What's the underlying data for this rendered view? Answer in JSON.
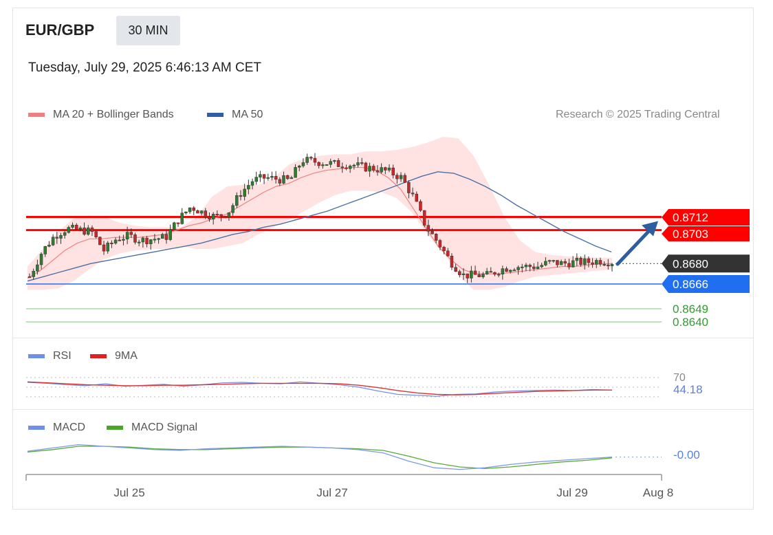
{
  "header": {
    "symbol": "EUR/GBP",
    "timeframe": "30 MIN",
    "datetime": "Tuesday, July 29, 2025 6:46:13 AM CET",
    "credit": "Research © 2025 Trading Central"
  },
  "legend": {
    "ma20": "MA 20 + Bollinger Bands",
    "ma50": "MA 50",
    "rsi": "RSI",
    "rsi_ma": "9MA",
    "macd": "MACD",
    "macd_signal": "MACD Signal"
  },
  "colors": {
    "resistance": "#ff0000",
    "current": "#333333",
    "support1": "#1f6ff0",
    "support": "#2e9d2e",
    "arrow": "#2d5f9e",
    "ma20": "#f08080",
    "ma50": "#4a6fa5",
    "band": "#ffd9d9",
    "rsi": "#6f8fe8",
    "rsi_ma": "#e03030",
    "macd": "#7c9be6",
    "macd_signal": "#55aa33"
  },
  "chart_data": [
    {
      "type": "candlestick",
      "title": "EUR/GBP",
      "x_ticks": [
        "Jul 25",
        "Jul 27",
        "Jul 29",
        "Aug 8"
      ],
      "ylim": [
        0.8632,
        0.872
      ],
      "levels": [
        {
          "value": 0.8712,
          "label": "0.8712",
          "kind": "resistance"
        },
        {
          "value": 0.8703,
          "label": "0.8703",
          "kind": "resistance"
        },
        {
          "value": 0.868,
          "label": "0.8680",
          "kind": "current"
        },
        {
          "value": 0.8666,
          "label": "0.8666",
          "kind": "support1"
        },
        {
          "value": 0.8649,
          "label": "0.8649",
          "kind": "support"
        },
        {
          "value": 0.864,
          "label": "0.8640",
          "kind": "support"
        }
      ],
      "close_path": [
        0.8671,
        0.8688,
        0.8699,
        0.8704,
        0.8703,
        0.8702,
        0.8689,
        0.8697,
        0.8699,
        0.8696,
        0.8697,
        0.8698,
        0.871,
        0.8719,
        0.8715,
        0.8712,
        0.8715,
        0.8728,
        0.8737,
        0.8739,
        0.8738,
        0.8737,
        0.8751,
        0.875,
        0.8749,
        0.8748,
        0.8748,
        0.8746,
        0.8745,
        0.8743,
        0.8739,
        0.8725,
        0.8705,
        0.8694,
        0.8681,
        0.8672,
        0.8672,
        0.8672,
        0.8676,
        0.8678,
        0.8678,
        0.8678,
        0.8681,
        0.868,
        0.8681,
        0.8681,
        0.8682,
        0.8681
      ],
      "ma20": [
        0.867,
        0.8675,
        0.8682,
        0.8689,
        0.8694,
        0.8697,
        0.8697,
        0.8698,
        0.8698,
        0.8698,
        0.8699,
        0.87,
        0.8703,
        0.8706,
        0.8708,
        0.8711,
        0.8714,
        0.8719,
        0.8724,
        0.8729,
        0.8733,
        0.8735,
        0.8739,
        0.8742,
        0.8744,
        0.8745,
        0.8746,
        0.8746,
        0.8744,
        0.8739,
        0.8731,
        0.8718,
        0.8705,
        0.8692,
        0.8683,
        0.8676,
        0.8673,
        0.8673,
        0.8673,
        0.8674,
        0.8675,
        0.8676,
        0.8677,
        0.8678,
        0.8678,
        0.8679,
        0.868,
        0.868
      ],
      "ma50": [
        0.8668,
        0.8671,
        0.8674,
        0.8677,
        0.868,
        0.8682,
        0.8684,
        0.8686,
        0.8688,
        0.869,
        0.8692,
        0.8694,
        0.8697,
        0.87,
        0.8702,
        0.8705,
        0.8707,
        0.871,
        0.8713,
        0.8716,
        0.872,
        0.8724,
        0.8728,
        0.8732,
        0.8736,
        0.874,
        0.8743,
        0.8742,
        0.8738,
        0.8733,
        0.8727,
        0.872,
        0.8714,
        0.8708,
        0.8702,
        0.8697,
        0.8692,
        0.8688
      ],
      "band_upper": [
        0.8678,
        0.869,
        0.8702,
        0.8711,
        0.8713,
        0.8712,
        0.8708,
        0.8706,
        0.8705,
        0.8705,
        0.8705,
        0.8712,
        0.8726,
        0.8733,
        0.8734,
        0.8734,
        0.8739,
        0.8748,
        0.8752,
        0.8754,
        0.8755,
        0.8755,
        0.8757,
        0.8757,
        0.8758,
        0.876,
        0.8763,
        0.8767,
        0.8766,
        0.8754,
        0.8734,
        0.8712,
        0.8696,
        0.8688,
        0.8686,
        0.8685,
        0.8685,
        0.8684,
        0.8684
      ],
      "band_lower": [
        0.8662,
        0.8662,
        0.8663,
        0.8668,
        0.8676,
        0.8683,
        0.8687,
        0.8689,
        0.869,
        0.869,
        0.8692,
        0.869,
        0.869,
        0.8692,
        0.8694,
        0.87,
        0.8705,
        0.871,
        0.8716,
        0.8722,
        0.8727,
        0.873,
        0.873,
        0.8729,
        0.8725,
        0.8715,
        0.87,
        0.8688,
        0.8672,
        0.8662,
        0.8662,
        0.8664,
        0.8668,
        0.8671,
        0.8672,
        0.8673,
        0.8674,
        0.8675,
        0.8676
      ],
      "forecast_target": 0.8712
    },
    {
      "type": "line",
      "title": "RSI",
      "series": [
        {
          "name": "RSI",
          "last_label": "44.18",
          "values": [
            60,
            58,
            55,
            53,
            57,
            52,
            54,
            56,
            52,
            55,
            59,
            60,
            58,
            57,
            61,
            58,
            55,
            50,
            42,
            35,
            33,
            31,
            35,
            36,
            40,
            42,
            43,
            44,
            43,
            45,
            44
          ]
        },
        {
          "name": "9MA",
          "values": [
            61,
            59,
            57,
            55,
            54,
            53,
            53,
            54,
            54,
            55,
            56,
            57,
            58,
            58,
            58,
            58,
            57,
            54,
            49,
            43,
            38,
            35,
            34,
            35,
            37,
            39,
            41,
            42,
            43,
            44,
            44
          ]
        }
      ],
      "y_ticks": [
        "70"
      ],
      "levels": [
        70,
        50,
        30
      ]
    },
    {
      "type": "line",
      "title": "MACD",
      "series": [
        {
          "name": "MACD",
          "last_label": "-0.00",
          "values": [
            0.4,
            0.8,
            1.2,
            1.0,
            0.8,
            0.6,
            0.5,
            0.7,
            0.8,
            0.9,
            1.0,
            0.9,
            0.8,
            0.6,
            0.2,
            -0.8,
            -1.6,
            -1.8,
            -1.6,
            -1.2,
            -0.9,
            -0.7,
            -0.5,
            -0.3
          ]
        },
        {
          "name": "MACD Signal",
          "values": [
            0.3,
            0.6,
            1.0,
            1.0,
            0.9,
            0.7,
            0.6,
            0.6,
            0.7,
            0.8,
            0.9,
            0.9,
            0.8,
            0.7,
            0.5,
            -0.2,
            -1.0,
            -1.5,
            -1.7,
            -1.5,
            -1.2,
            -0.9,
            -0.7,
            -0.4
          ]
        }
      ]
    }
  ]
}
